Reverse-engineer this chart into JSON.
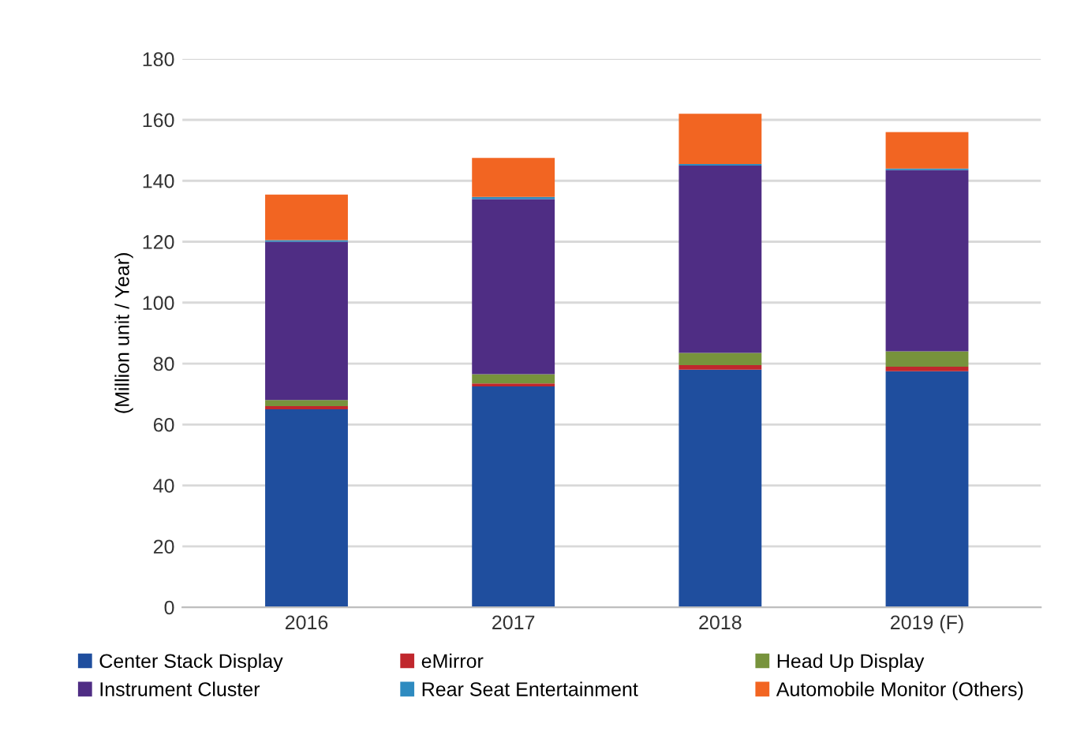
{
  "chart_data": {
    "type": "bar",
    "stacked": true,
    "ylabel": "(Million unit / Year)",
    "categories": [
      "2016",
      "2017",
      "2018",
      "2019 (F)"
    ],
    "series": [
      {
        "name": "Center Stack Display",
        "color": "#1f4e9e",
        "values": [
          65,
          72.5,
          78,
          77.5
        ]
      },
      {
        "name": "eMirror",
        "color": "#c0272d",
        "values": [
          1,
          1,
          1.5,
          1.5
        ]
      },
      {
        "name": "Head Up Display",
        "color": "#77933c",
        "values": [
          2,
          3,
          4,
          5
        ]
      },
      {
        "name": "Instrument Cluster",
        "color": "#4f2d84",
        "values": [
          52,
          57.5,
          61.5,
          59.5
        ]
      },
      {
        "name": "Rear Seat Entertainment",
        "color": "#2e8bc0",
        "values": [
          0.5,
          0.7,
          0.5,
          0.5
        ]
      },
      {
        "name": "Automobile Monitor (Others)",
        "color": "#f26522",
        "values": [
          15,
          12.8,
          16.5,
          12
        ]
      }
    ],
    "ylim": [
      0,
      180
    ],
    "yticks": [
      0,
      20,
      40,
      60,
      80,
      100,
      120,
      140,
      160,
      180
    ],
    "grid": "y",
    "legend": "bottom"
  }
}
